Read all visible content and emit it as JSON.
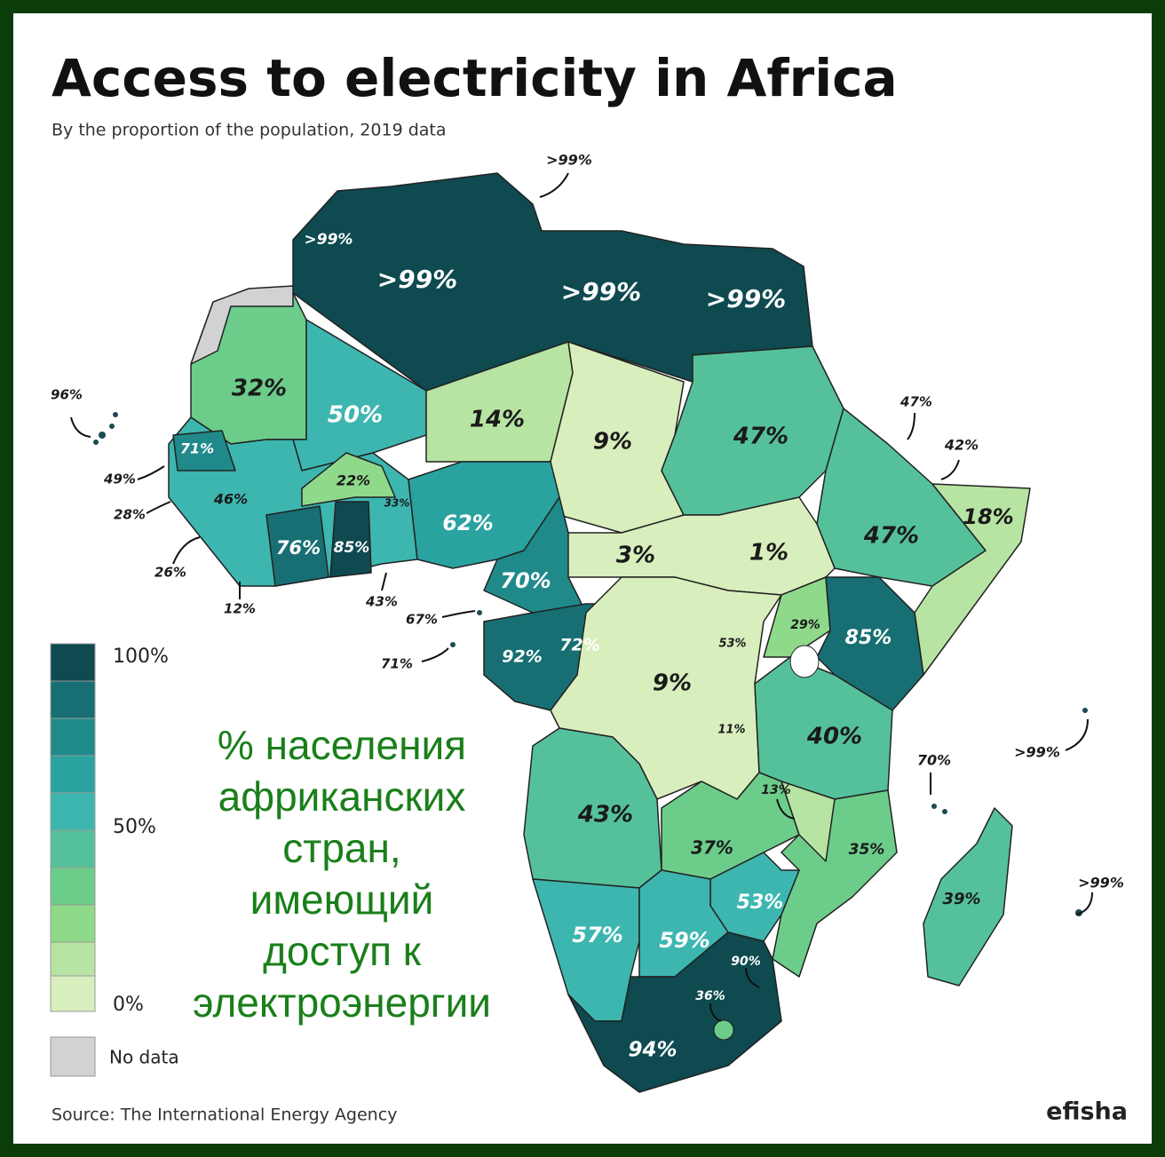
{
  "title": "Access to electricity in Africa",
  "subtitle": "By the proportion of the population, 2019 data",
  "legend": {
    "top": "100%",
    "middle": "50%",
    "bottom": "0%",
    "no_data": "No data"
  },
  "overlay_text": [
    "% населения",
    "африканских",
    "стран,",
    "имеющий",
    "доступ к",
    "электроэнергии"
  ],
  "source": "Source: The International Energy Agency",
  "brand": "efisha",
  "labels": [
    ">99%",
    ">99%",
    ">99%",
    ">99%",
    ">99%",
    "96%",
    "32%",
    "50%",
    "14%",
    "9%",
    "47%",
    "47%",
    "42%",
    "71%",
    "49%",
    "22%",
    "46%",
    "33%",
    "62%",
    "18%",
    "47%",
    "28%",
    "76%",
    "85%",
    "3%",
    "1%",
    "26%",
    "70%",
    "12%",
    "43%",
    "67%",
    "29%",
    "72%",
    "85%",
    "53%",
    "92%",
    "71%",
    "9%",
    "11%",
    "40%",
    "70%",
    ">99%",
    "13%",
    "43%",
    "37%",
    "35%",
    "53%",
    ">99%",
    "39%",
    "57%",
    "59%",
    "90%",
    "36%",
    "94%"
  ]
}
